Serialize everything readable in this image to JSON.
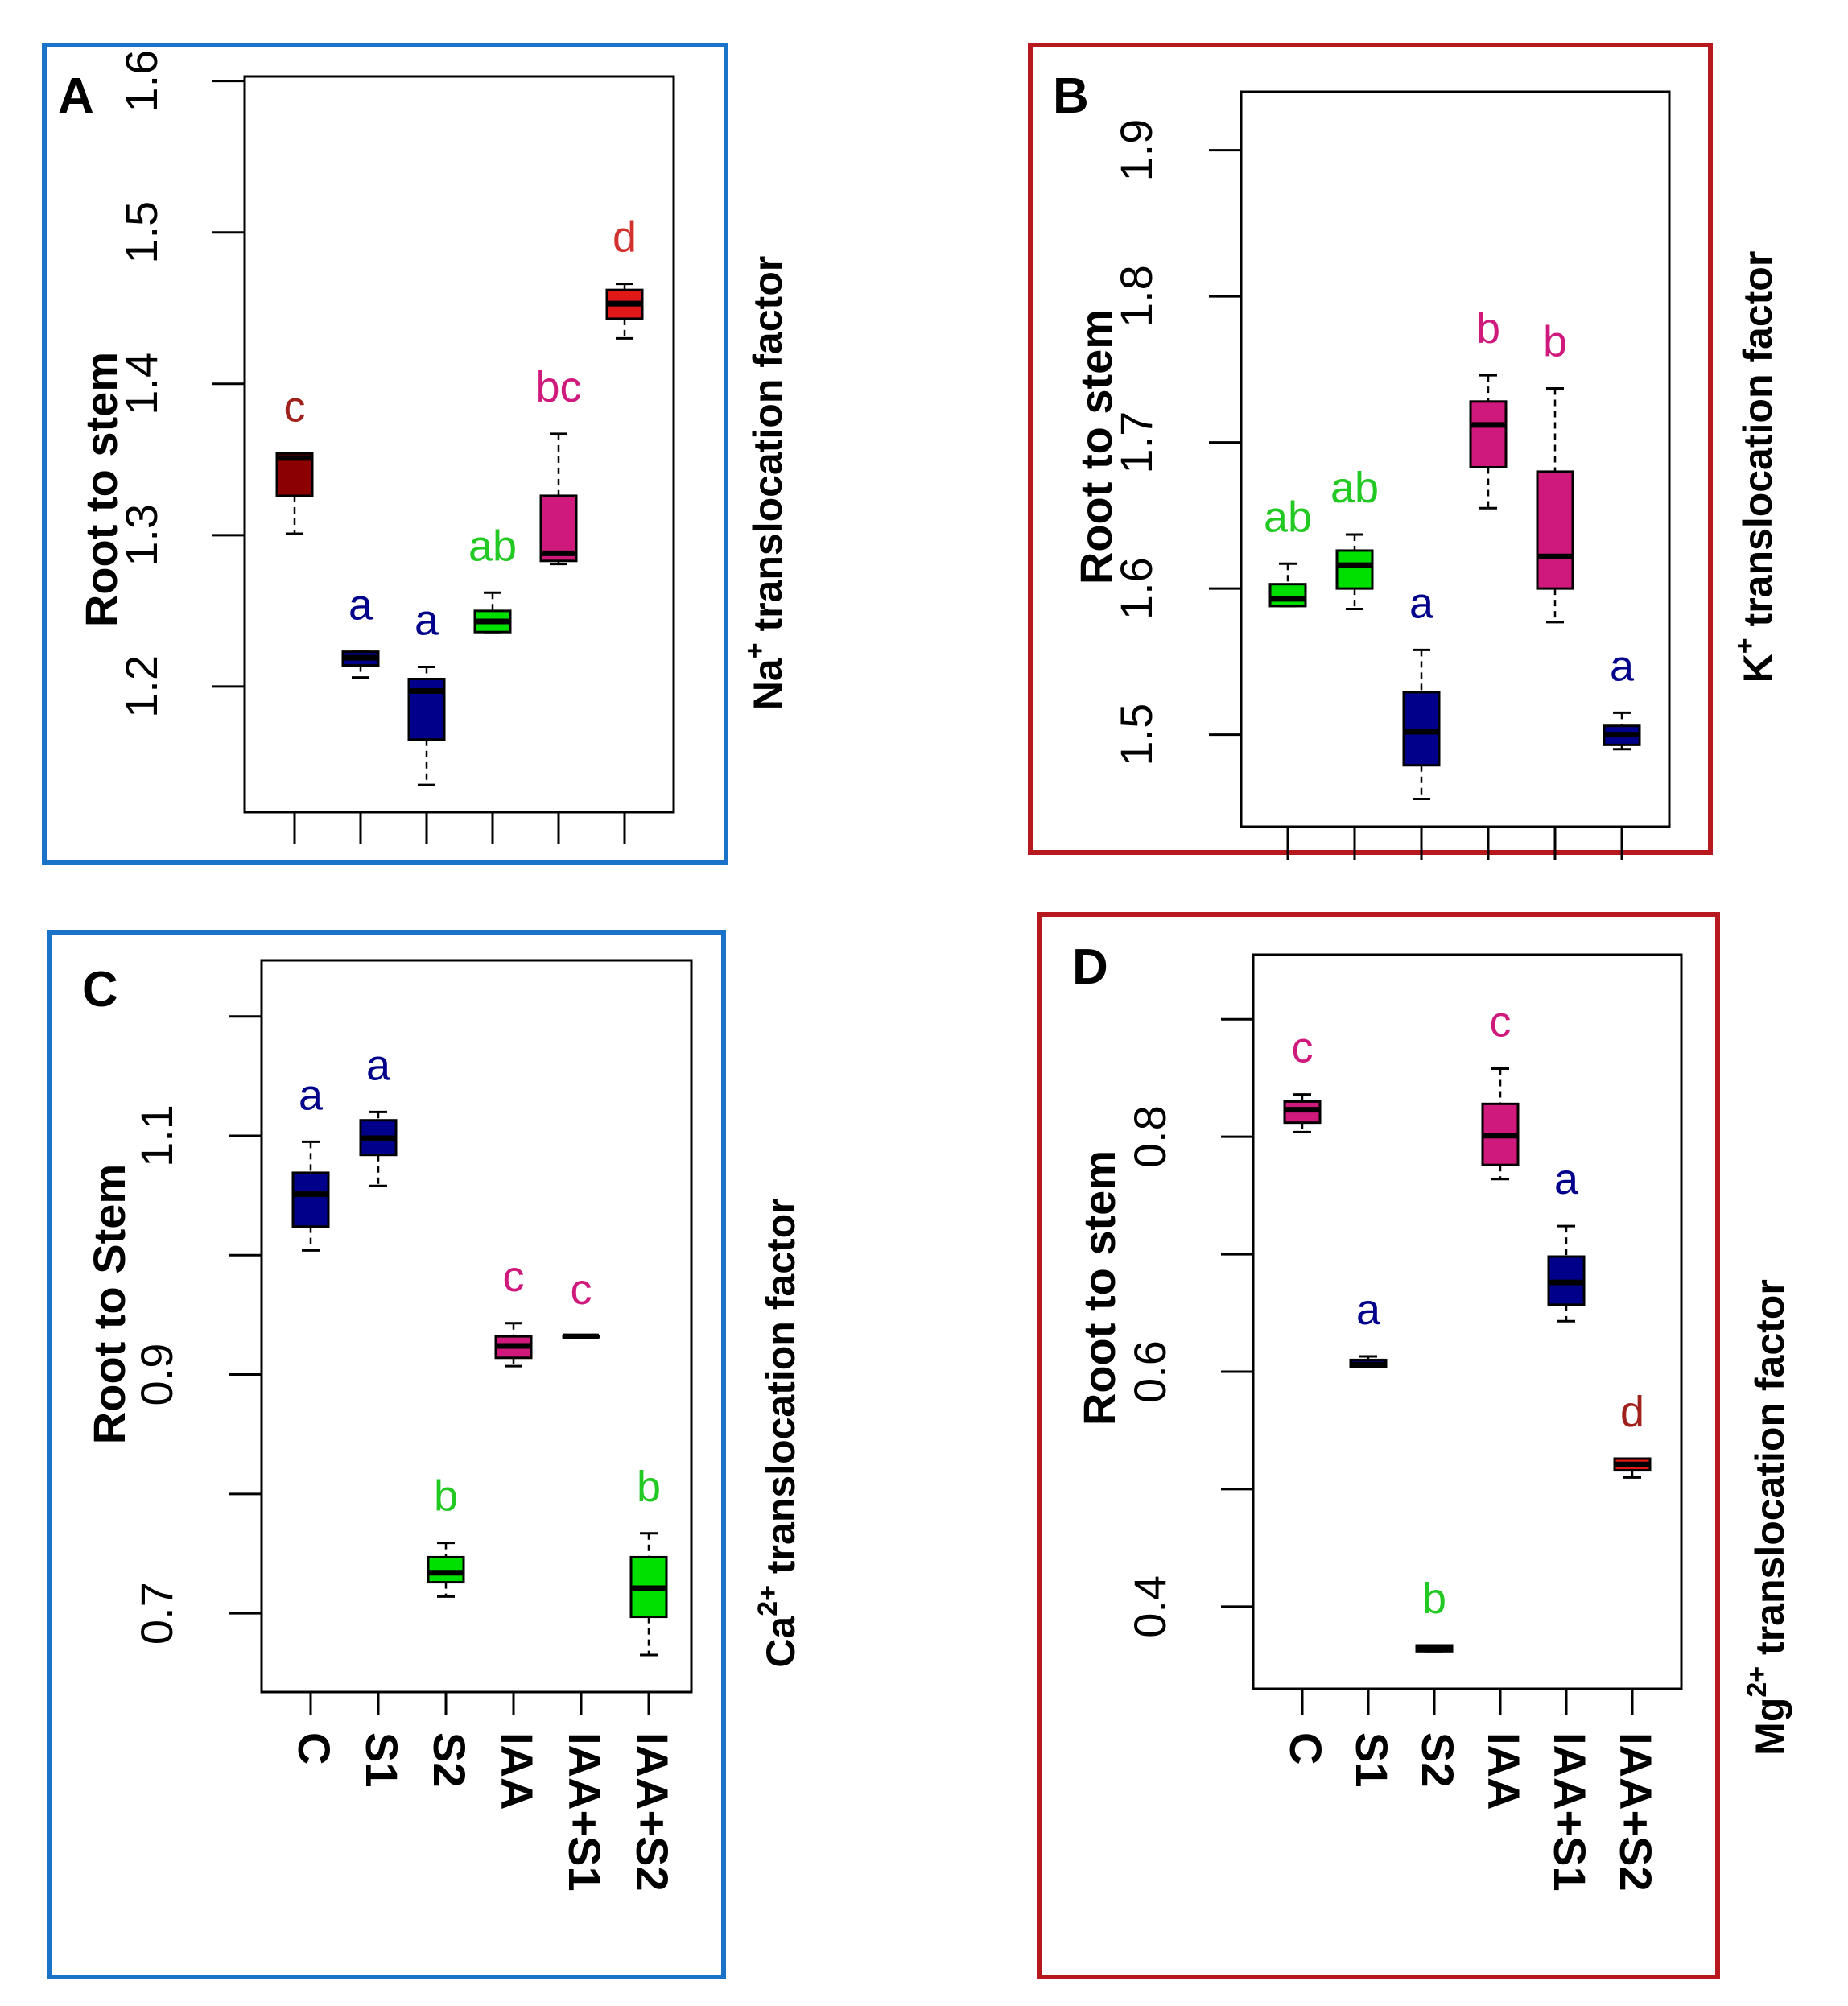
{
  "figure": {
    "categories": [
      "C",
      "S1",
      "S2",
      "IAA",
      "IAA+S1",
      "IAA+S2"
    ],
    "colors": {
      "dark_red": "#8B0000",
      "red": "#E01818",
      "navy": "#00008B",
      "green": "#00E000",
      "green_text": "#22C922",
      "magenta": "#D0197C",
      "blue_border": "#1A73C8",
      "red_border": "#B7181E",
      "label_dark_red": "#A0201C",
      "label_red": "#D2322D"
    }
  },
  "chart_data": [
    {
      "panel": "A",
      "type": "box",
      "ylabel": "Root to stem",
      "side_label_prefix": "Na",
      "side_label_sup": "+",
      "side_label_suffix": " translocation factor",
      "ylim": [
        1.117,
        1.603
      ],
      "yticks": [
        1.2,
        1.3,
        1.4,
        1.5,
        1.6
      ],
      "ytick_labels": [
        "1.2",
        "1.3",
        "1.4",
        "1.5",
        "1.6"
      ],
      "show_x_labels": false,
      "boxes": [
        {
          "category": "C",
          "whisker_low": 1.301,
          "q1": 1.326,
          "median": 1.351,
          "q3": 1.354,
          "whisker_high": 1.354,
          "letter": "c",
          "fill": "#8B0000",
          "letter_color": "#A0201C"
        },
        {
          "category": "S1",
          "whisker_low": 1.206,
          "q1": 1.214,
          "median": 1.219,
          "q3": 1.223,
          "whisker_high": 1.223,
          "letter": "a",
          "fill": "#00008B",
          "letter_color": "#00008B"
        },
        {
          "category": "S2",
          "whisker_low": 1.135,
          "q1": 1.165,
          "median": 1.197,
          "q3": 1.205,
          "whisker_high": 1.213,
          "letter": "a",
          "fill": "#00008B",
          "letter_color": "#00008B"
        },
        {
          "category": "IAA",
          "whisker_low": 1.236,
          "q1": 1.236,
          "median": 1.243,
          "q3": 1.25,
          "whisker_high": 1.262,
          "letter": "ab",
          "fill": "#00E000",
          "letter_color": "#22C922"
        },
        {
          "category": "IAA+S1",
          "whisker_low": 1.281,
          "q1": 1.283,
          "median": 1.288,
          "q3": 1.326,
          "whisker_high": 1.367,
          "letter": "bc",
          "fill": "#D0197C",
          "letter_color": "#D0197C"
        },
        {
          "category": "IAA+S2",
          "whisker_low": 1.43,
          "q1": 1.443,
          "median": 1.453,
          "q3": 1.462,
          "whisker_high": 1.466,
          "letter": "d",
          "fill": "#E01818",
          "letter_color": "#D2322D"
        }
      ]
    },
    {
      "panel": "B",
      "type": "box",
      "ylabel": "Root to stem",
      "side_label_prefix": "K",
      "side_label_sup": "+",
      "side_label_suffix": " translocation factor",
      "ylim": [
        1.437,
        1.94
      ],
      "yticks": [
        1.5,
        1.6,
        1.7,
        1.8,
        1.9
      ],
      "ytick_labels": [
        "1.5",
        "1.6",
        "1.7",
        "1.8",
        "1.9"
      ],
      "show_x_labels": false,
      "boxes": [
        {
          "category": "C",
          "whisker_low": 1.588,
          "q1": 1.588,
          "median": 1.593,
          "q3": 1.603,
          "whisker_high": 1.617,
          "letter": "ab",
          "fill": "#00E000",
          "letter_color": "#22C922"
        },
        {
          "category": "S1",
          "whisker_low": 1.586,
          "q1": 1.6,
          "median": 1.616,
          "q3": 1.626,
          "whisker_high": 1.637,
          "letter": "ab",
          "fill": "#00E000",
          "letter_color": "#22C922"
        },
        {
          "category": "S2",
          "whisker_low": 1.456,
          "q1": 1.479,
          "median": 1.502,
          "q3": 1.529,
          "whisker_high": 1.558,
          "letter": "a",
          "fill": "#00008B",
          "letter_color": "#00008B"
        },
        {
          "category": "IAA",
          "whisker_low": 1.655,
          "q1": 1.683,
          "median": 1.712,
          "q3": 1.728,
          "whisker_high": 1.746,
          "letter": "b",
          "fill": "#D0197C",
          "letter_color": "#D0197C"
        },
        {
          "category": "IAA+S1",
          "whisker_low": 1.577,
          "q1": 1.6,
          "median": 1.622,
          "q3": 1.68,
          "whisker_high": 1.737,
          "letter": "b",
          "fill": "#D0197C",
          "letter_color": "#D0197C"
        },
        {
          "category": "IAA+S2",
          "whisker_low": 1.49,
          "q1": 1.493,
          "median": 1.5,
          "q3": 1.506,
          "whisker_high": 1.515,
          "letter": "a",
          "fill": "#00008B",
          "letter_color": "#00008B"
        }
      ]
    },
    {
      "panel": "C",
      "type": "box",
      "ylabel": "Root to Stem",
      "side_label_prefix": "Ca",
      "side_label_sup": "2+",
      "side_label_suffix": " translocation factor",
      "ylim": [
        0.634,
        1.247
      ],
      "yticks": [
        0.7,
        0.8,
        0.9,
        1.0,
        1.1,
        1.2
      ],
      "ytick_labels": [
        "0.7",
        "",
        "0.9",
        "",
        "1.1",
        ""
      ],
      "show_x_labels": true,
      "boxes": [
        {
          "category": "C",
          "whisker_low": 1.004,
          "q1": 1.024,
          "median": 1.051,
          "q3": 1.069,
          "whisker_high": 1.095,
          "letter": "a",
          "fill": "#00008B",
          "letter_color": "#00008B"
        },
        {
          "category": "S1",
          "whisker_low": 1.058,
          "q1": 1.084,
          "median": 1.098,
          "q3": 1.113,
          "whisker_high": 1.12,
          "letter": "a",
          "fill": "#00008B",
          "letter_color": "#00008B"
        },
        {
          "category": "S2",
          "whisker_low": 0.714,
          "q1": 0.726,
          "median": 0.734,
          "q3": 0.747,
          "whisker_high": 0.759,
          "letter": "b",
          "fill": "#00E000",
          "letter_color": "#22C922"
        },
        {
          "category": "IAA",
          "whisker_low": 0.907,
          "q1": 0.914,
          "median": 0.924,
          "q3": 0.932,
          "whisker_high": 0.943,
          "letter": "c",
          "fill": "#D0197C",
          "letter_color": "#D0197C"
        },
        {
          "category": "IAA+S1",
          "whisker_low": 0.932,
          "q1": 0.932,
          "median": 0.932,
          "q3": 0.932,
          "whisker_high": 0.932,
          "letter": "c",
          "fill": "#D0197C",
          "letter_color": "#D0197C"
        },
        {
          "category": "IAA+S2",
          "whisker_low": 0.665,
          "q1": 0.697,
          "median": 0.721,
          "q3": 0.747,
          "whisker_high": 0.767,
          "letter": "b",
          "fill": "#00E000",
          "letter_color": "#22C922"
        }
      ]
    },
    {
      "panel": "D",
      "type": "box",
      "ylabel": "Root to stem",
      "side_label_prefix": "Mg",
      "side_label_sup": "2+",
      "side_label_suffix": " translocation factor",
      "ylim": [
        0.33,
        0.955
      ],
      "yticks": [
        0.4,
        0.5,
        0.6,
        0.7,
        0.8,
        0.9
      ],
      "ytick_labels": [
        "0.4",
        "",
        "0.6",
        "",
        "0.8",
        ""
      ],
      "show_x_labels": true,
      "boxes": [
        {
          "category": "C",
          "whisker_low": 0.804,
          "q1": 0.812,
          "median": 0.823,
          "q3": 0.83,
          "whisker_high": 0.836,
          "letter": "c",
          "fill": "#D0197C",
          "letter_color": "#D0197C"
        },
        {
          "category": "S1",
          "whisker_low": 0.604,
          "q1": 0.604,
          "median": 0.606,
          "q3": 0.61,
          "whisker_high": 0.613,
          "letter": "a",
          "fill": "#00008B",
          "letter_color": "#00008B"
        },
        {
          "category": "S2",
          "whisker_low": 0.362,
          "q1": 0.362,
          "median": 0.364,
          "q3": 0.367,
          "whisker_high": 0.367,
          "letter": "b",
          "fill": "#00E000",
          "letter_color": "#22C922"
        },
        {
          "category": "IAA",
          "whisker_low": 0.764,
          "q1": 0.776,
          "median": 0.801,
          "q3": 0.828,
          "whisker_high": 0.858,
          "letter": "c",
          "fill": "#D0197C",
          "letter_color": "#D0197C"
        },
        {
          "category": "IAA+S1",
          "whisker_low": 0.643,
          "q1": 0.657,
          "median": 0.676,
          "q3": 0.698,
          "whisker_high": 0.724,
          "letter": "a",
          "fill": "#00008B",
          "letter_color": "#00008B"
        },
        {
          "category": "IAA+S2",
          "whisker_low": 0.51,
          "q1": 0.516,
          "median": 0.521,
          "q3": 0.526,
          "whisker_high": 0.526,
          "letter": "d",
          "fill": "#E01818",
          "letter_color": "#A0201C"
        }
      ]
    }
  ]
}
